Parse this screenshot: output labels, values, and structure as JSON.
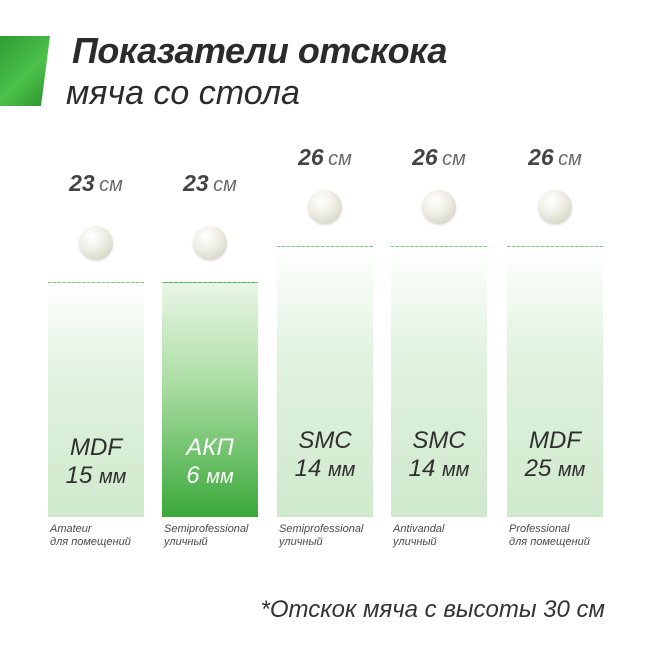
{
  "header": {
    "title_line1": "Показатели отскока",
    "title_line2": "мяча со стола"
  },
  "colors": {
    "accent": "#3ab53c",
    "bar_light": "#cfe9cc",
    "bar_highlight": "#3aa83a"
  },
  "columns": [
    {
      "height": "23",
      "unit": "см",
      "material": "MDF",
      "thickness": "15",
      "thickness_unit": "мм",
      "cat1": "Amateur",
      "cat2": "для помещений",
      "highlight": false
    },
    {
      "height": "23",
      "unit": "см",
      "material": "АКП",
      "thickness": "6",
      "thickness_unit": "мм",
      "cat1": "Semiprofessional",
      "cat2": "уличный",
      "highlight": true
    },
    {
      "height": "26",
      "unit": "см",
      "material": "SMC",
      "thickness": "14",
      "thickness_unit": "мм",
      "cat1": "Semiprofessional",
      "cat2": "уличный",
      "highlight": false
    },
    {
      "height": "26",
      "unit": "см",
      "material": "SMC",
      "thickness": "14",
      "thickness_unit": "мм",
      "cat1": "Antivandal",
      "cat2": "уличный",
      "highlight": false
    },
    {
      "height": "26",
      "unit": "см",
      "material": "MDF",
      "thickness": "25",
      "thickness_unit": "мм",
      "cat1": "Professional",
      "cat2": "для помещений",
      "highlight": false
    }
  ],
  "footnote": "*Отскок мяча с высоты 30 см",
  "chart_data": {
    "type": "bar",
    "title": "Показатели отскока мяча со стола",
    "categories": [
      "MDF 15 мм",
      "АКП 6 мм",
      "SMC 14 мм",
      "SMC 14 мм",
      "MDF 25 мм"
    ],
    "values": [
      23,
      23,
      26,
      26,
      26
    ],
    "unit": "см"
  }
}
